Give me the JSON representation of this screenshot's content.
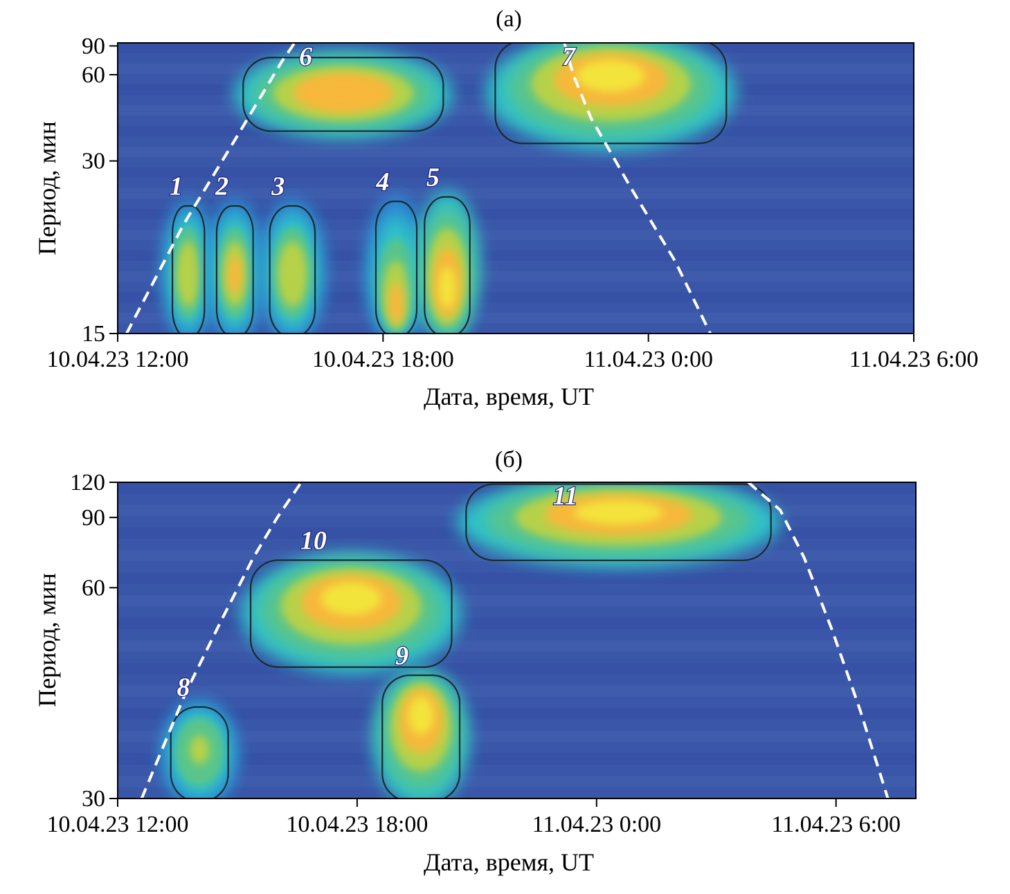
{
  "chart_data": [
    {
      "type": "heatmap",
      "panel_label": "(а)",
      "xlabel": "Дата, время, UT",
      "ylabel": "Период, мин",
      "x_ticks": [
        "10.04.23 12:00",
        "10.04.23 18:00",
        "11.04.23 0:00",
        "11.04.23 6:00"
      ],
      "x_tick_hours": [
        12,
        18,
        24,
        30
      ],
      "y_ticks": [
        15,
        30,
        60,
        90
      ],
      "y_scale": "reciprocal",
      "ylim": [
        15,
        95
      ],
      "xlim_hours": [
        12,
        30
      ],
      "colormap": [
        "#3b4fa8",
        "#2a8fd6",
        "#2ec1c8",
        "#5ac58a",
        "#b6d14a",
        "#f7b83a",
        "#f3e43a"
      ],
      "background_color": "#3a56a8",
      "dashed_curve_color": "#ffffff",
      "contour_color": "#1a2a30",
      "regions": [
        {
          "label": "1",
          "t_start": 13.3,
          "t_end": 13.9,
          "p_min": 15,
          "p_max": 23.5,
          "peak_period": 18,
          "intensity": 0.72
        },
        {
          "label": "2",
          "t_start": 14.3,
          "t_end": 15.0,
          "p_min": 15,
          "p_max": 23.5,
          "peak_period": 18,
          "intensity": 0.75
        },
        {
          "label": "3",
          "t_start": 15.5,
          "t_end": 16.4,
          "p_min": 15,
          "p_max": 23.5,
          "peak_period": 18,
          "intensity": 0.72
        },
        {
          "label": "4",
          "t_start": 17.9,
          "t_end": 18.7,
          "p_min": 15,
          "p_max": 24.0,
          "peak_period": 16,
          "intensity": 0.82
        },
        {
          "label": "5",
          "t_start": 19.0,
          "t_end": 19.9,
          "p_min": 15,
          "p_max": 24.5,
          "peak_period": 17,
          "intensity": 0.97
        },
        {
          "label": "6",
          "t_start": 14.9,
          "t_end": 19.3,
          "p_min": 37,
          "p_max": 72,
          "peak_period": 50,
          "intensity": 0.9
        },
        {
          "label": "7",
          "t_start": 20.6,
          "t_end": 25.7,
          "p_min": 34,
          "p_max": 94,
          "peak_period": 62,
          "intensity": 0.96
        }
      ],
      "dashed_curve": {
        "left": [
          [
            12.2,
            15
          ],
          [
            13.5,
            22
          ],
          [
            14.7,
            35
          ],
          [
            15.3,
            50
          ],
          [
            15.7,
            70
          ],
          [
            16.0,
            95
          ]
        ],
        "right": [
          [
            22.1,
            95
          ],
          [
            22.3,
            60
          ],
          [
            22.7,
            40
          ],
          [
            23.6,
            26
          ],
          [
            24.6,
            19
          ],
          [
            25.4,
            15
          ]
        ]
      }
    },
    {
      "type": "heatmap",
      "panel_label": "(б)",
      "xlabel": "Дата, время, UT",
      "ylabel": "Период, мин",
      "x_ticks": [
        "10.04.23 12:00",
        "10.04.23 18:00",
        "11.04.23 0:00",
        "11.04.23 6:00"
      ],
      "x_tick_hours": [
        12,
        18,
        24,
        30
      ],
      "y_ticks": [
        30,
        60,
        90,
        120
      ],
      "y_scale": "reciprocal",
      "ylim": [
        30,
        120
      ],
      "xlim_hours": [
        12,
        32
      ],
      "colormap": [
        "#3b4fa8",
        "#2a8fd6",
        "#2ec1c8",
        "#5ac58a",
        "#b6d14a",
        "#f7b83a",
        "#f3e43a"
      ],
      "background_color": "#3a56a8",
      "dashed_curve_color": "#ffffff",
      "contour_color": "#1a2a30",
      "regions": [
        {
          "label": "8",
          "t_start": 13.4,
          "t_end": 14.7,
          "p_min": 30,
          "p_max": 38,
          "peak_period": 34,
          "intensity": 0.62
        },
        {
          "label": "9",
          "t_start": 18.7,
          "t_end": 20.5,
          "p_min": 30,
          "p_max": 42,
          "peak_period": 38,
          "intensity": 0.92
        },
        {
          "label": "10",
          "t_start": 15.4,
          "t_end": 20.3,
          "p_min": 44,
          "p_max": 68,
          "peak_period": 58,
          "intensity": 0.96
        },
        {
          "label": "11",
          "t_start": 20.8,
          "t_end": 28.3,
          "p_min": 70,
          "p_max": 115,
          "peak_period": 95,
          "intensity": 1.0
        }
      ],
      "dashed_curve": {
        "left": [
          [
            12.6,
            30
          ],
          [
            13.7,
            40
          ],
          [
            14.6,
            52
          ],
          [
            15.4,
            70
          ],
          [
            16.0,
            90
          ],
          [
            16.6,
            120
          ]
        ],
        "right": [
          [
            27.8,
            120
          ],
          [
            28.6,
            95
          ],
          [
            29.2,
            70
          ],
          [
            29.9,
            50
          ],
          [
            30.6,
            38
          ],
          [
            31.3,
            30
          ]
        ]
      }
    }
  ]
}
